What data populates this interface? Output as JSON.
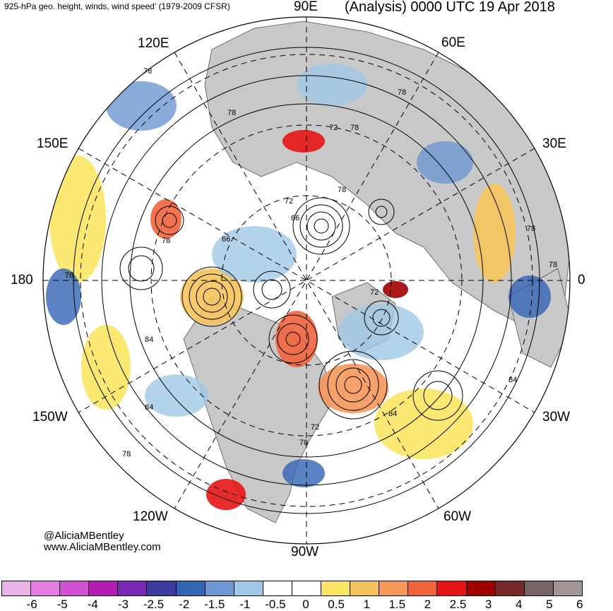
{
  "header": {
    "left_title": "925-hPa geo. height, winds, wind speed' (1979-2009 CFSR)",
    "right_title": "(Analysis) 0000 UTC 19 Apr 2018"
  },
  "map": {
    "projection": "north-polar-stereographic",
    "longitude_labels": {
      "e90": "90E",
      "e60": "60E",
      "e120": "120E",
      "e30": "30E",
      "e150": "150E",
      "e0": "0",
      "d180": "180",
      "w30": "30W",
      "w150": "150W",
      "w60": "60W",
      "w120": "120W",
      "w90": "90W"
    },
    "contour_labels": [
      "78",
      "78",
      "72",
      "78",
      "78",
      "72",
      "66",
      "78",
      "66",
      "78",
      "72",
      "78",
      "78",
      "84",
      "84",
      "84",
      "84",
      "78",
      "72",
      "78",
      "78"
    ],
    "colors": {
      "land": "#c8c8c8",
      "ocean": "#ffffff",
      "contour": "#000000"
    }
  },
  "credits": {
    "handle": "@AliciaMBentley",
    "website": "www.AliciaMBentley.com"
  },
  "colorbar": {
    "colors": [
      "#e6b4e6",
      "#e67ee6",
      "#d250d2",
      "#b41eb4",
      "#7828b4",
      "#3c3ca0",
      "#3264b4",
      "#6e96d2",
      "#a0c8e6",
      "#ffffff",
      "#ffffff",
      "#fae664",
      "#f5c35a",
      "#f5965a",
      "#f0643c",
      "#e61414",
      "#a00000",
      "#782828",
      "#786464",
      "#a09696"
    ],
    "tick_labels": [
      "-6",
      "-5",
      "-4",
      "-3",
      "-2.5",
      "-2",
      "-1.5",
      "-1",
      "-0.5",
      "0",
      "0.5",
      "1",
      "1.5",
      "2",
      "2.5",
      "3",
      "4",
      "5",
      "6"
    ]
  }
}
